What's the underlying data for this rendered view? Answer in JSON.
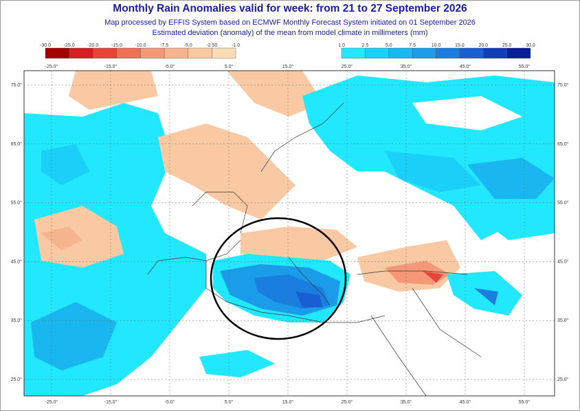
{
  "header": {
    "title": "Monthly Rain Anomalies valid for week: from 21 to 27 September 2026",
    "subtitle_1": "Map processed by EFFIS System based on ECMWF Monthly Forecast System initiated on 01 September 2026",
    "subtitle_2": "Estimated deviation (anomaly) of the mean from model climate in millimeters (mm)"
  },
  "legend_negative": {
    "labels": [
      "-30.0",
      "-25.0",
      "-20.0",
      "-15.0",
      "-10.0",
      "-7.5",
      "-5.0",
      "-2.50",
      "-1.0"
    ],
    "colors": [
      "#a50000",
      "#d42020",
      "#e8453a",
      "#f07058",
      "#f49878",
      "#f6b48e",
      "#f8c9a2",
      "#fadcb8"
    ]
  },
  "legend_positive": {
    "labels": [
      "1.0",
      "2.5",
      "5.0",
      "7.5",
      "10.0",
      "15.0",
      "20.0",
      "25.0",
      "30.0"
    ],
    "colors": [
      "#22e8ff",
      "#1ad0f8",
      "#1ab6f0",
      "#1a9ce8",
      "#1a7ee0",
      "#1a5ed4",
      "#123eb8",
      "#0a1e9a"
    ]
  },
  "map": {
    "lon_labels": [
      "-25.0°",
      "-15.0°",
      "-5.0°",
      "5.0°",
      "15.0°",
      "25.0°",
      "35.0°",
      "45.0°",
      "55.0°"
    ],
    "lat_labels": [
      "75.0°",
      "65.0°",
      "55.0°",
      "45.0°",
      "35.0°",
      "25.0°"
    ]
  }
}
